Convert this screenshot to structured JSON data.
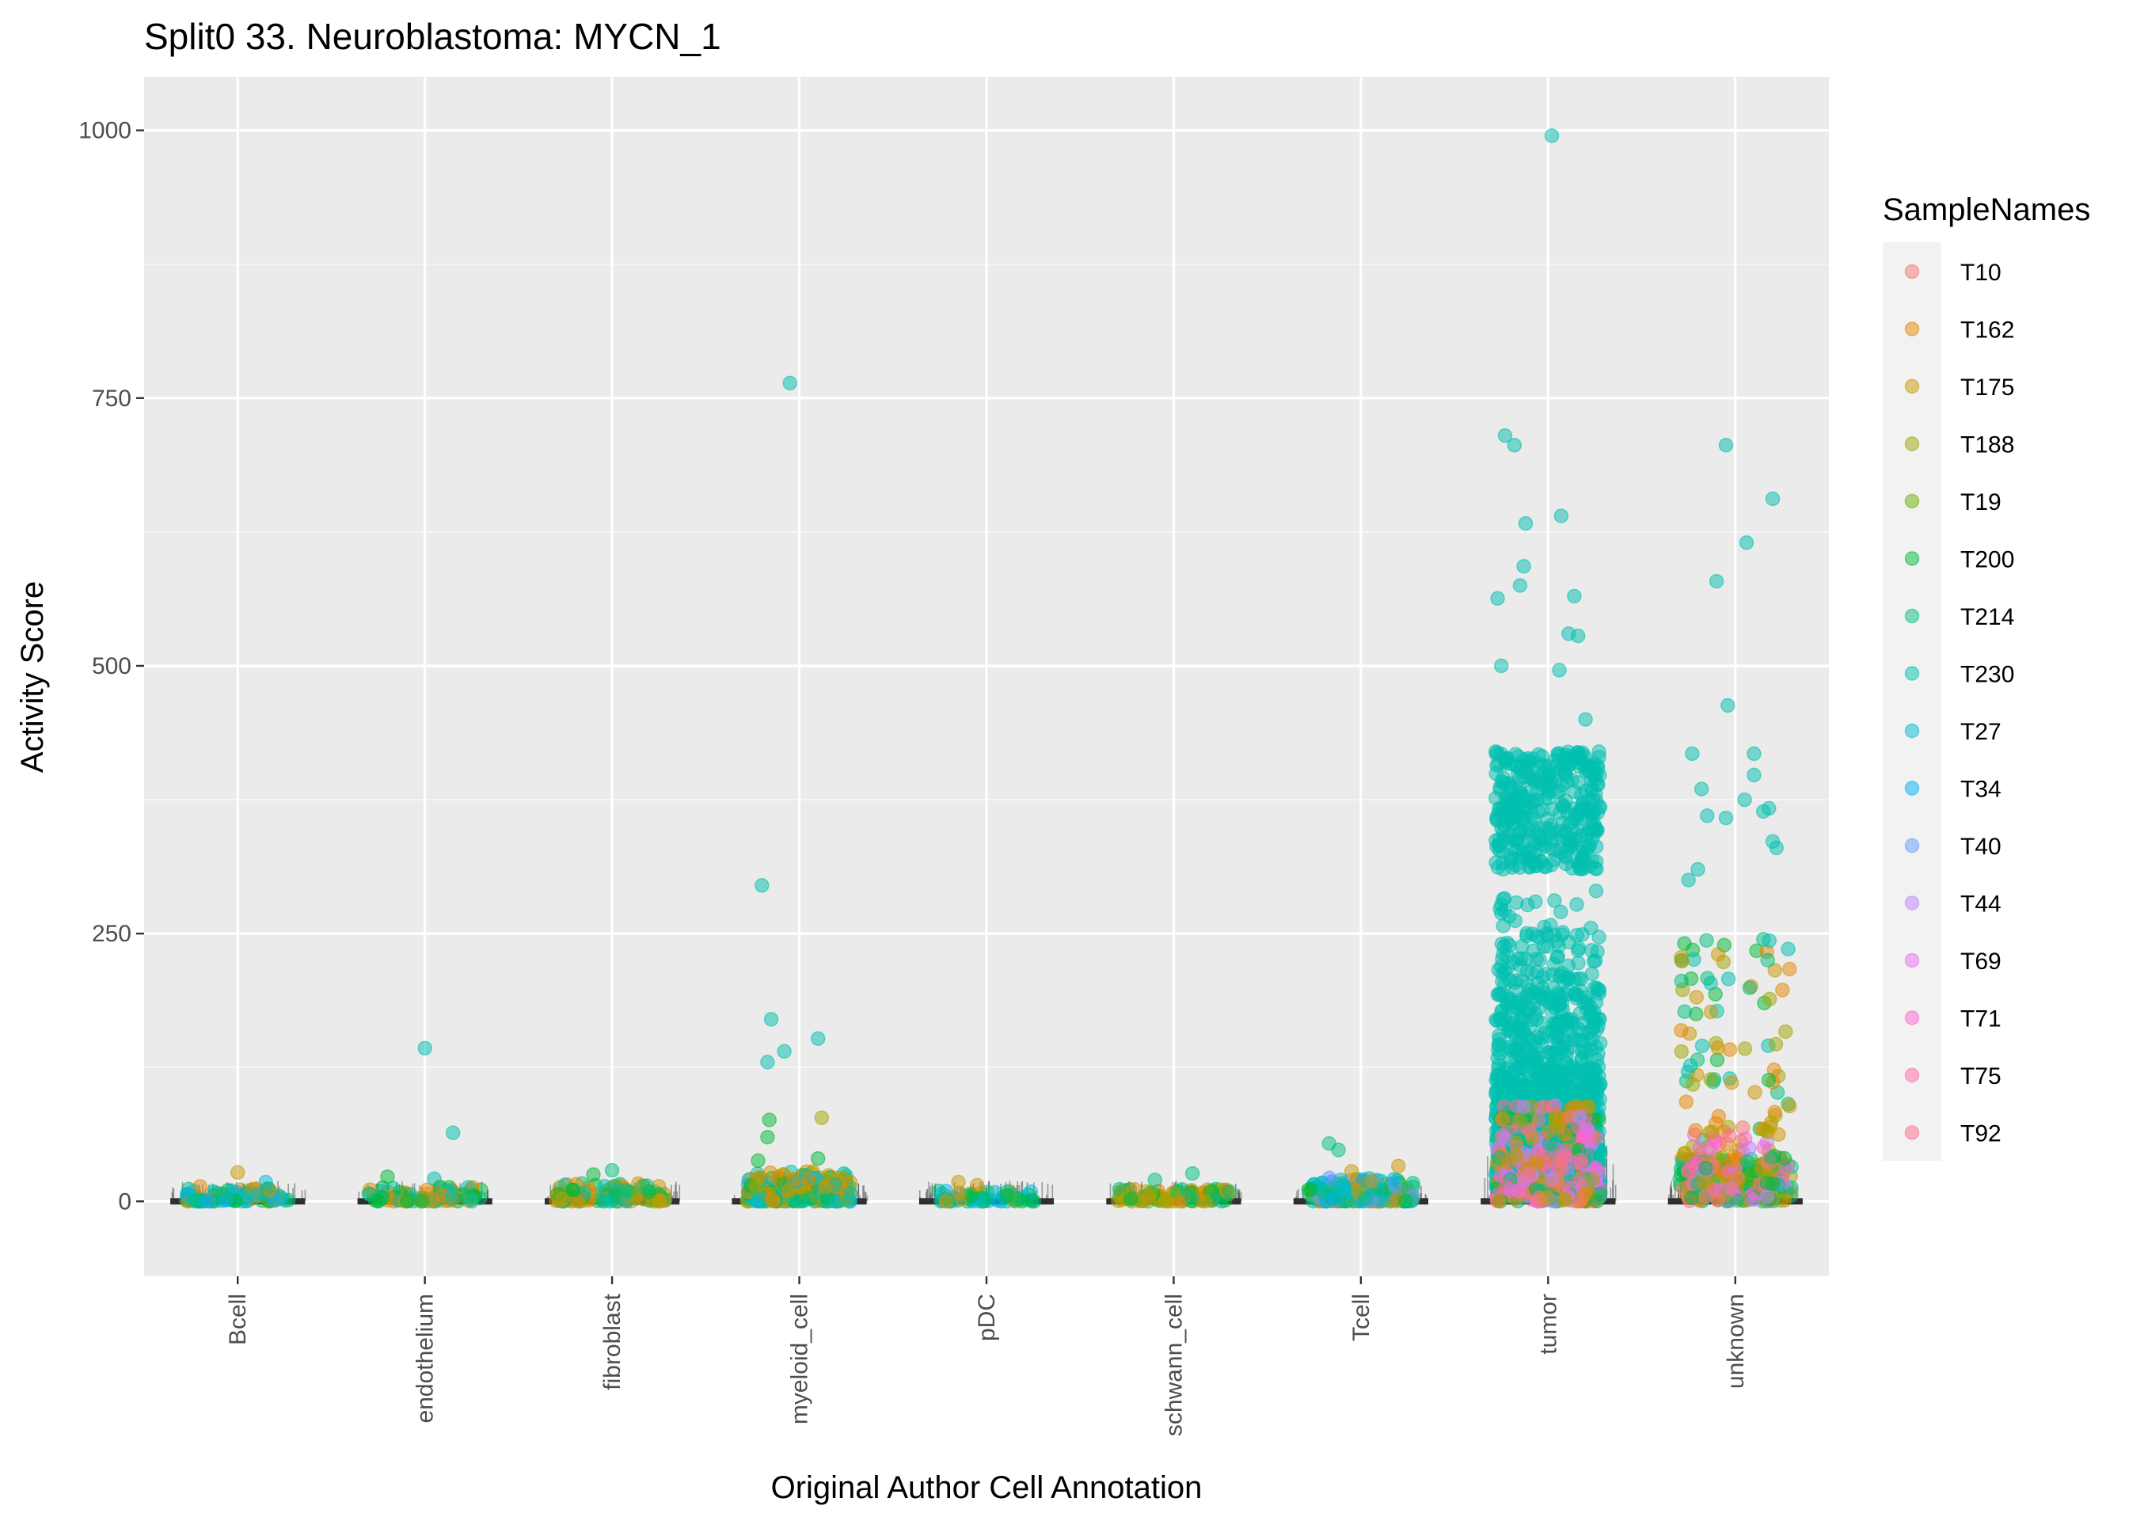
{
  "chart_data": {
    "type": "scatter",
    "title": "Split0 33. Neuroblastoma: MYCN_1",
    "xlabel": "Original Author Cell Annotation",
    "ylabel": "Activity Score",
    "ylim": [
      -70,
      1050
    ],
    "y_ticks": [
      0,
      250,
      500,
      750,
      1000
    ],
    "y_tick_labels": [
      "0",
      "250",
      "500",
      "750",
      "1000"
    ],
    "grid": true,
    "legend_position": "right",
    "legend_title": "SampleNames",
    "categories": [
      "Bcell",
      "endothelium",
      "fibroblast",
      "myeloid_cell",
      "pDC",
      "schwann_cell",
      "Tcell",
      "tumor",
      "unknown"
    ],
    "series": [
      {
        "name": "T10",
        "color": "#F8766D"
      },
      {
        "name": "T162",
        "color": "#E58700"
      },
      {
        "name": "T175",
        "color": "#C99800"
      },
      {
        "name": "T188",
        "color": "#A3A500"
      },
      {
        "name": "T19",
        "color": "#6BB100"
      },
      {
        "name": "T200",
        "color": "#00BA38"
      },
      {
        "name": "T214",
        "color": "#00BF7D"
      },
      {
        "name": "T230",
        "color": "#00C0AF"
      },
      {
        "name": "T27",
        "color": "#00BCD8"
      },
      {
        "name": "T34",
        "color": "#00B0F6"
      },
      {
        "name": "T40",
        "color": "#619CFF"
      },
      {
        "name": "T44",
        "color": "#B983FF"
      },
      {
        "name": "T69",
        "color": "#E76BF3"
      },
      {
        "name": "T71",
        "color": "#FD61D1"
      },
      {
        "name": "T75",
        "color": "#FF67A4"
      },
      {
        "name": "T92",
        "color": "#FF6C90"
      }
    ],
    "points": [
      {
        "category": "Bcell",
        "series": "T175",
        "y": 27,
        "jitter": 0.0
      },
      {
        "category": "Bcell",
        "series": "T27",
        "y": 18,
        "jitter": 0.15
      },
      {
        "category": "Bcell",
        "series": "T162",
        "y": 14,
        "jitter": -0.2
      },
      {
        "category": "endothelium",
        "series": "T230",
        "y": 143,
        "jitter": 0.0
      },
      {
        "category": "endothelium",
        "series": "T230",
        "y": 64,
        "jitter": 0.15
      },
      {
        "category": "endothelium",
        "series": "T200",
        "y": 23,
        "jitter": -0.2
      },
      {
        "category": "endothelium",
        "series": "T230",
        "y": 21,
        "jitter": 0.05
      },
      {
        "category": "fibroblast",
        "series": "T214",
        "y": 29,
        "jitter": 0.0
      },
      {
        "category": "fibroblast",
        "series": "T200",
        "y": 25,
        "jitter": -0.1
      },
      {
        "category": "myeloid_cell",
        "series": "T230",
        "y": 764,
        "jitter": -0.05
      },
      {
        "category": "myeloid_cell",
        "series": "T230",
        "y": 295,
        "jitter": -0.2
      },
      {
        "category": "myeloid_cell",
        "series": "T230",
        "y": 170,
        "jitter": -0.15
      },
      {
        "category": "myeloid_cell",
        "series": "T230",
        "y": 152,
        "jitter": 0.1
      },
      {
        "category": "myeloid_cell",
        "series": "T230",
        "y": 140,
        "jitter": -0.08
      },
      {
        "category": "myeloid_cell",
        "series": "T230",
        "y": 130,
        "jitter": -0.17
      },
      {
        "category": "myeloid_cell",
        "series": "T200",
        "y": 76,
        "jitter": -0.16
      },
      {
        "category": "myeloid_cell",
        "series": "T188",
        "y": 78,
        "jitter": 0.12
      },
      {
        "category": "myeloid_cell",
        "series": "T200",
        "y": 60,
        "jitter": -0.17
      },
      {
        "category": "myeloid_cell",
        "series": "T200",
        "y": 40,
        "jitter": 0.1
      },
      {
        "category": "myeloid_cell",
        "series": "T200",
        "y": 38,
        "jitter": -0.22
      },
      {
        "category": "pDC",
        "series": "T175",
        "y": 18,
        "jitter": -0.15
      },
      {
        "category": "pDC",
        "series": "T175",
        "y": 15,
        "jitter": -0.05
      },
      {
        "category": "schwann_cell",
        "series": "T214",
        "y": 26,
        "jitter": 0.1
      },
      {
        "category": "schwann_cell",
        "series": "T214",
        "y": 20,
        "jitter": -0.1
      },
      {
        "category": "Tcell",
        "series": "T214",
        "y": 54,
        "jitter": -0.17
      },
      {
        "category": "Tcell",
        "series": "T214",
        "y": 48,
        "jitter": -0.12
      },
      {
        "category": "Tcell",
        "series": "T175",
        "y": 33,
        "jitter": 0.2
      },
      {
        "category": "Tcell",
        "series": "T175",
        "y": 28,
        "jitter": -0.05
      },
      {
        "category": "tumor",
        "series": "T230",
        "y": 995,
        "jitter": 0.02
      },
      {
        "category": "tumor",
        "series": "T230",
        "y": 715,
        "jitter": -0.23
      },
      {
        "category": "tumor",
        "series": "T230",
        "y": 706,
        "jitter": -0.18
      },
      {
        "category": "tumor",
        "series": "T230",
        "y": 640,
        "jitter": 0.07
      },
      {
        "category": "tumor",
        "series": "T230",
        "y": 633,
        "jitter": -0.12
      },
      {
        "category": "tumor",
        "series": "T230",
        "y": 593,
        "jitter": -0.13
      },
      {
        "category": "tumor",
        "series": "T230",
        "y": 575,
        "jitter": -0.15
      },
      {
        "category": "tumor",
        "series": "T230",
        "y": 565,
        "jitter": 0.14
      },
      {
        "category": "tumor",
        "series": "T230",
        "y": 563,
        "jitter": -0.27
      },
      {
        "category": "tumor",
        "series": "T230",
        "y": 530,
        "jitter": 0.11
      },
      {
        "category": "tumor",
        "series": "T230",
        "y": 528,
        "jitter": 0.16
      },
      {
        "category": "tumor",
        "series": "T230",
        "y": 500,
        "jitter": -0.25
      },
      {
        "category": "tumor",
        "series": "T230",
        "y": 496,
        "jitter": 0.06
      },
      {
        "category": "tumor",
        "series": "T230",
        "y": 450,
        "jitter": 0.2
      },
      {
        "category": "tumor",
        "series": "T230",
        "y": 420,
        "jitter": -0.28
      },
      {
        "category": "unknown",
        "series": "T230",
        "y": 706,
        "jitter": -0.05
      },
      {
        "category": "unknown",
        "series": "T230",
        "y": 656,
        "jitter": 0.2
      },
      {
        "category": "unknown",
        "series": "T230",
        "y": 615,
        "jitter": 0.06
      },
      {
        "category": "unknown",
        "series": "T230",
        "y": 579,
        "jitter": -0.1
      },
      {
        "category": "unknown",
        "series": "T230",
        "y": 463,
        "jitter": -0.04
      },
      {
        "category": "unknown",
        "series": "T230",
        "y": 418,
        "jitter": -0.23
      },
      {
        "category": "unknown",
        "series": "T230",
        "y": 418,
        "jitter": 0.1
      },
      {
        "category": "unknown",
        "series": "T230",
        "y": 398,
        "jitter": 0.1
      },
      {
        "category": "unknown",
        "series": "T230",
        "y": 385,
        "jitter": -0.18
      },
      {
        "category": "unknown",
        "series": "T230",
        "y": 375,
        "jitter": 0.05
      },
      {
        "category": "unknown",
        "series": "T230",
        "y": 367,
        "jitter": 0.18
      },
      {
        "category": "unknown",
        "series": "T230",
        "y": 364,
        "jitter": 0.15
      },
      {
        "category": "unknown",
        "series": "T230",
        "y": 360,
        "jitter": -0.15
      },
      {
        "category": "unknown",
        "series": "T230",
        "y": 358,
        "jitter": -0.05
      },
      {
        "category": "unknown",
        "series": "T230",
        "y": 336,
        "jitter": 0.2
      },
      {
        "category": "unknown",
        "series": "T230",
        "y": 330,
        "jitter": 0.22
      },
      {
        "category": "unknown",
        "series": "T230",
        "y": 310,
        "jitter": -0.2
      },
      {
        "category": "unknown",
        "series": "T230",
        "y": 300,
        "jitter": -0.25
      }
    ]
  }
}
